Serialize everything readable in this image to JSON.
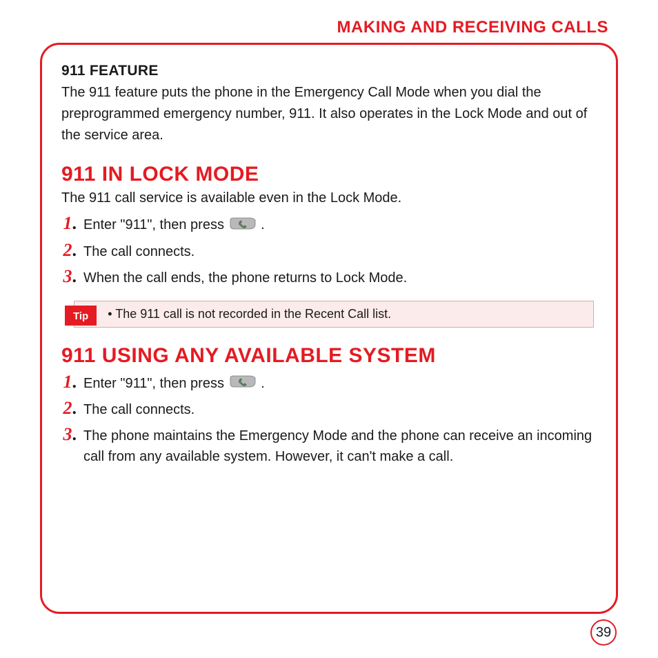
{
  "colors": {
    "accent": "#e41b23",
    "text": "#1a1a1a",
    "tip_bg": "#fbeceb",
    "tip_border": "#d9a9a7",
    "white": "#ffffff",
    "key_fill": "#b9b9b9",
    "key_stroke": "#7a7a7a",
    "key_icon": "#5e7a5e"
  },
  "typography": {
    "header_size_pt": 18,
    "section_title_size_pt": 22,
    "sub_heading_size_pt": 15,
    "body_size_pt": 15,
    "step_num_size_pt": 19,
    "tip_label_size_pt": 11,
    "tip_text_size_pt": 13,
    "page_num_size_pt": 15
  },
  "header": "MAKING AND RECEIVING CALLS",
  "feature": {
    "title": "911 FEATURE",
    "body": "The 911 feature puts the phone in the Emergency Call Mode when you dial the preprogrammed emergency number, 911.  It also operates in the Lock Mode and out of the service area."
  },
  "lock_mode": {
    "title": "911 IN LOCK MODE",
    "intro": "The 911 call service is available even in the Lock Mode.",
    "steps": [
      {
        "num": "1",
        "pre": "Enter \"911\", then press ",
        "has_key": true,
        "post": " ."
      },
      {
        "num": "2",
        "pre": "The call connects.",
        "has_key": false,
        "post": ""
      },
      {
        "num": "3",
        "pre": "When the call ends, the phone returns to Lock Mode.",
        "has_key": false,
        "post": ""
      }
    ]
  },
  "tip": {
    "label": "Tip",
    "text": "• The 911 call is not recorded in the Recent Call list."
  },
  "any_system": {
    "title": "911 USING ANY AVAILABLE SYSTEM",
    "steps": [
      {
        "num": "1",
        "pre": "Enter \"911\", then press ",
        "has_key": true,
        "post": " ."
      },
      {
        "num": "2",
        "pre": "The call connects.",
        "has_key": false,
        "post": ""
      },
      {
        "num": "3",
        "pre": "The phone maintains the Emergency Mode and the phone can receive an incoming call from any available system.  However, it can't make a call.",
        "has_key": false,
        "post": ""
      }
    ]
  },
  "page_number": "39"
}
